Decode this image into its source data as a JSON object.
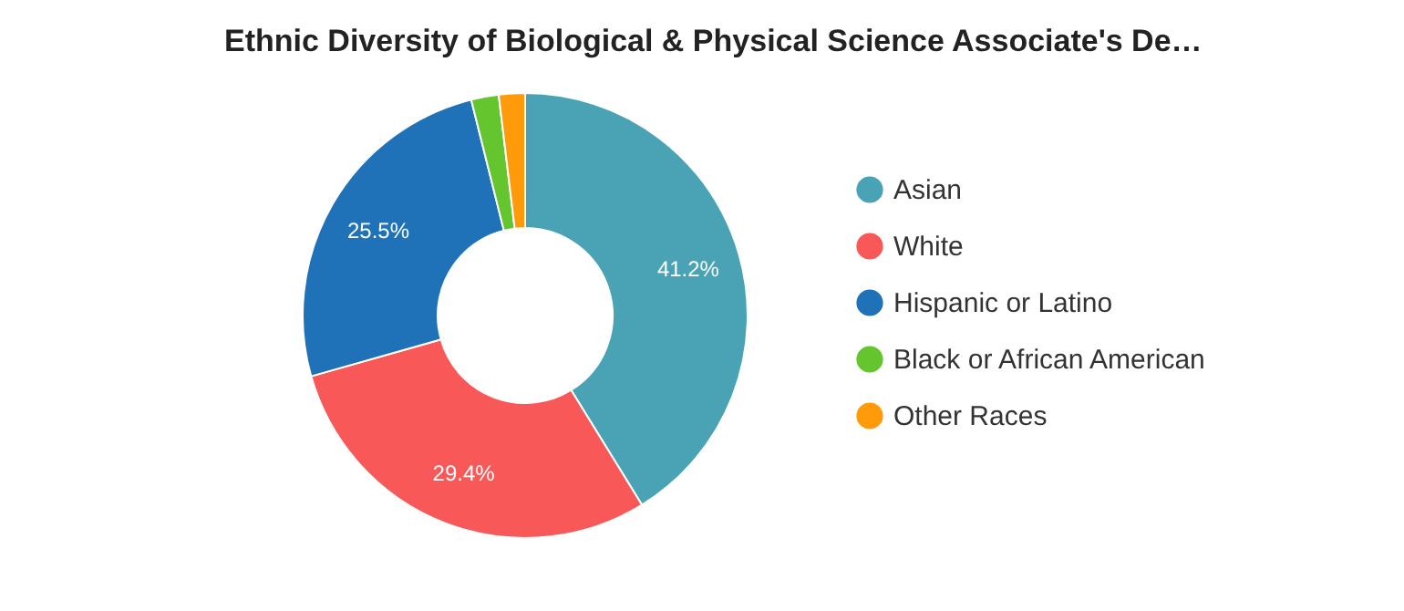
{
  "chart_data": {
    "type": "donut",
    "title": "Ethnic Diversity of Biological & Physical Science Associate's De…",
    "categories": [
      "Asian",
      "White",
      "Hispanic or Latino",
      "Black or African American",
      "Other Races"
    ],
    "values": [
      41.2,
      29.4,
      25.5,
      2.0,
      1.9
    ],
    "value_labels": [
      "41.2%",
      "29.4%",
      "25.5%",
      null,
      null
    ],
    "colors": [
      "#4aa3b5",
      "#f95858",
      "#1f72b8",
      "#65c52f",
      "#ff9a0a"
    ],
    "legend": "right"
  }
}
